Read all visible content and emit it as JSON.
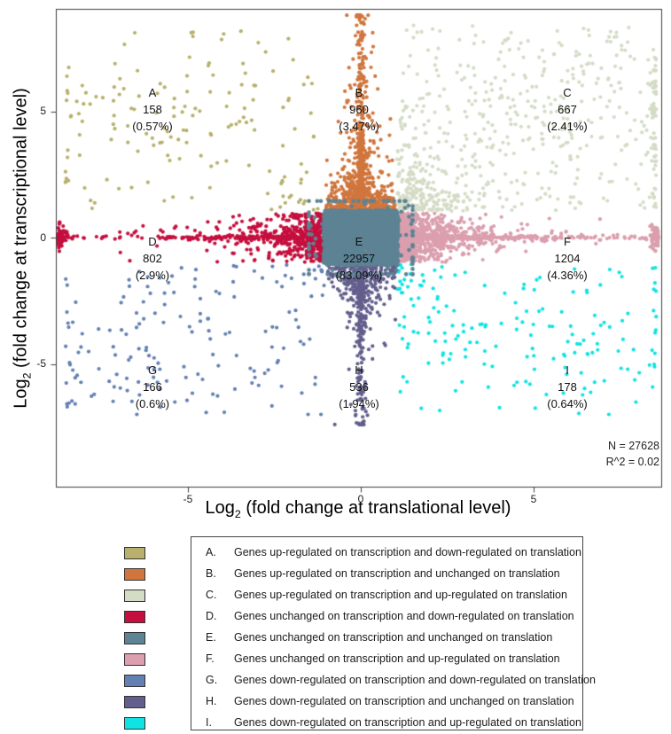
{
  "chart_data": {
    "type": "scatter",
    "title": "",
    "xlabel": "Log2 (fold change at translational level)",
    "ylabel": "Log2 (fold change at transcriptional level)",
    "xlabel_parts": {
      "base": "Log",
      "sub": "2",
      "rest": " (fold change at translational level)"
    },
    "ylabel_parts": {
      "base": "Log",
      "sub": "2",
      "rest": " (fold change at transcriptional level)"
    },
    "xlim": [
      -8.8,
      8.7
    ],
    "ylim": [
      -9.9,
      9.0
    ],
    "x_tick_values": [
      -5,
      0,
      5
    ],
    "y_tick_values": [
      5,
      0,
      -5
    ],
    "x_tick_labels": [
      "-5",
      "0",
      "5"
    ],
    "y_tick_labels": [
      "5",
      "0",
      "-5"
    ],
    "grid": false,
    "legend_position": "bottom",
    "total_genes": 27628,
    "r_squared": 0.02,
    "stats": {
      "n_line": "N = 27628",
      "r2_line": "R^2 = 0.02"
    },
    "groups": [
      {
        "letter": "A",
        "legend_label": "A.",
        "count": 158,
        "pct": "(0.57%)",
        "color": "#b8b06c",
        "description": "Genes up-regulated on transcription and down-regulated on translation",
        "region": {
          "translation_log2fc": "< -1",
          "transcription_log2fc": "> 1"
        },
        "pattern": "quadrant",
        "sx": -1,
        "sy": 1,
        "amax": 8.3,
        "u": 0.52,
        "c": 0.3,
        "k": 0.1,
        "cx": 5.4,
        "cy": 5.3
      },
      {
        "letter": "B",
        "legend_label": "B.",
        "count": 960,
        "pct": "(3.47%)",
        "color": "#d0763d",
        "description": "Genes up-regulated on transcription and unchanged on translation",
        "region": {
          "translation_log2fc": "-1 to 1",
          "transcription_log2fc": "> 1"
        },
        "pattern": "vstrip",
        "sy": 1,
        "amax": 8.8
      },
      {
        "letter": "C",
        "legend_label": "C.",
        "count": 667,
        "pct": "(2.41%)",
        "color": "#d4dcc6",
        "description": "Genes up-regulated on transcription and up-regulated on translation",
        "region": {
          "translation_log2fc": "> 1",
          "transcription_log2fc": "> 1"
        },
        "pattern": "quadrant",
        "sx": 1,
        "sy": 1,
        "amax": 8.4,
        "u": 0.38,
        "c": 0.12,
        "k": 0.4,
        "cx": 5.2,
        "cy": 5.0
      },
      {
        "letter": "D",
        "legend_label": "D.",
        "count": 802,
        "pct": "(2.9%)",
        "color": "#c50f3e",
        "description": "Genes unchanged on transcription and down-regulated on translation",
        "region": {
          "translation_log2fc": "< -1",
          "transcription_log2fc": "-1 to 1"
        },
        "pattern": "hstrip",
        "sx": -1,
        "amax": 8.75
      },
      {
        "letter": "E",
        "legend_label": "E.",
        "count": 22957,
        "pct": "(83.09%)",
        "color": "#5d8394",
        "description": "Genes unchanged on transcription and unchanged on translation",
        "region": {
          "translation_log2fc": "-1 to 1",
          "transcription_log2fc": "-1 to 1"
        },
        "pattern": "center",
        "render_points": 2600
      },
      {
        "letter": "F",
        "legend_label": "F.",
        "count": 1204,
        "pct": "(4.36%)",
        "color": "#db9fae",
        "description": "Genes unchanged on transcription and up-regulated on translation",
        "region": {
          "translation_log2fc": "> 1",
          "transcription_log2fc": "-1 to 1"
        },
        "pattern": "hstrip",
        "sx": 1,
        "amax": 8.6
      },
      {
        "letter": "G",
        "legend_label": "G.",
        "count": 166,
        "pct": "(0.6%)",
        "color": "#6380b2",
        "description": "Genes down-regulated on transcription and down-regulated on translation",
        "region": {
          "translation_log2fc": "< -1",
          "transcription_log2fc": "< -1"
        },
        "pattern": "quadrant",
        "sx": -1,
        "sy": -1,
        "amax": 7.0,
        "u": 0.5,
        "c": 0.32,
        "k": 0.12,
        "cx": 5.8,
        "cy": 4.7
      },
      {
        "letter": "H",
        "legend_label": "H.",
        "count": 536,
        "pct": "(1.94%)",
        "color": "#635f8d",
        "description": "Genes down-regulated on transcription and unchanged on translation",
        "region": {
          "translation_log2fc": "-1 to 1",
          "transcription_log2fc": "< -1"
        },
        "pattern": "vstrip",
        "sy": -1,
        "amax": 7.4
      },
      {
        "letter": "I",
        "legend_label": "I.",
        "count": 178,
        "pct": "(0.64%)",
        "color": "#0fe3e3",
        "description": "Genes down-regulated on transcription and up-regulated on translation",
        "region": {
          "translation_log2fc": "> 1",
          "transcription_log2fc": "< -1"
        },
        "pattern": "quadrant",
        "sx": 1,
        "sy": -1,
        "amax": 7.0,
        "u": 0.42,
        "c": 0.28,
        "k": 0.2,
        "cx": 5.3,
        "cy": 4.3
      }
    ]
  }
}
